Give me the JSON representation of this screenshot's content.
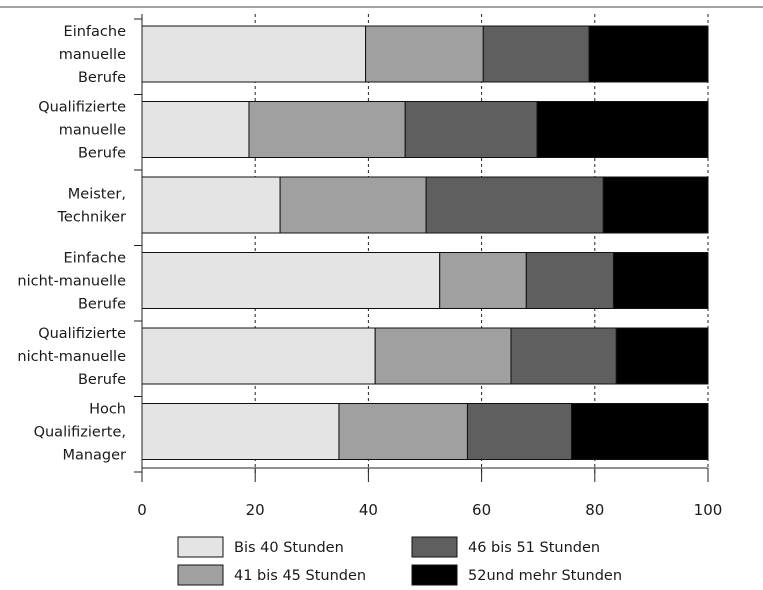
{
  "chart_data": {
    "type": "bar",
    "orientation": "horizontal",
    "stacked": true,
    "categories": [
      [
        "Einfache",
        "manuelle",
        "Berufe"
      ],
      [
        "Qualifizierte",
        "manuelle",
        "Berufe"
      ],
      [
        "Meister,",
        "Techniker"
      ],
      [
        "Einfache",
        "nicht-manuelle",
        "Berufe"
      ],
      [
        "Qualifizierte",
        "nicht-manuelle",
        "Berufe"
      ],
      [
        "Hoch",
        "Qualifizierte,",
        "Manager"
      ]
    ],
    "series": [
      {
        "name": "Bis 40 Stunden",
        "color": "#e4e4e4",
        "values": [
          39.5,
          18.9,
          24.4,
          52.6,
          41.2,
          34.8
        ]
      },
      {
        "name": "41 bis 45 Stunden",
        "color": "#a0a0a0",
        "values": [
          20.8,
          27.6,
          25.8,
          15.3,
          24.0,
          22.7
        ]
      },
      {
        "name": "46 bis 51 Stunden",
        "color": "#5f5f5f",
        "values": [
          18.7,
          23.3,
          31.3,
          15.4,
          18.6,
          18.4
        ]
      },
      {
        "name": "52und mehr Stunden",
        "color": "#000000",
        "values": [
          21.0,
          30.2,
          18.5,
          16.7,
          16.2,
          24.1
        ]
      }
    ],
    "xticks": [
      "0",
      "20",
      "40",
      "60",
      "80",
      "100"
    ],
    "xlim": [
      0,
      100
    ],
    "grid": "dashed vertical",
    "legend": "bottom, two columns"
  }
}
